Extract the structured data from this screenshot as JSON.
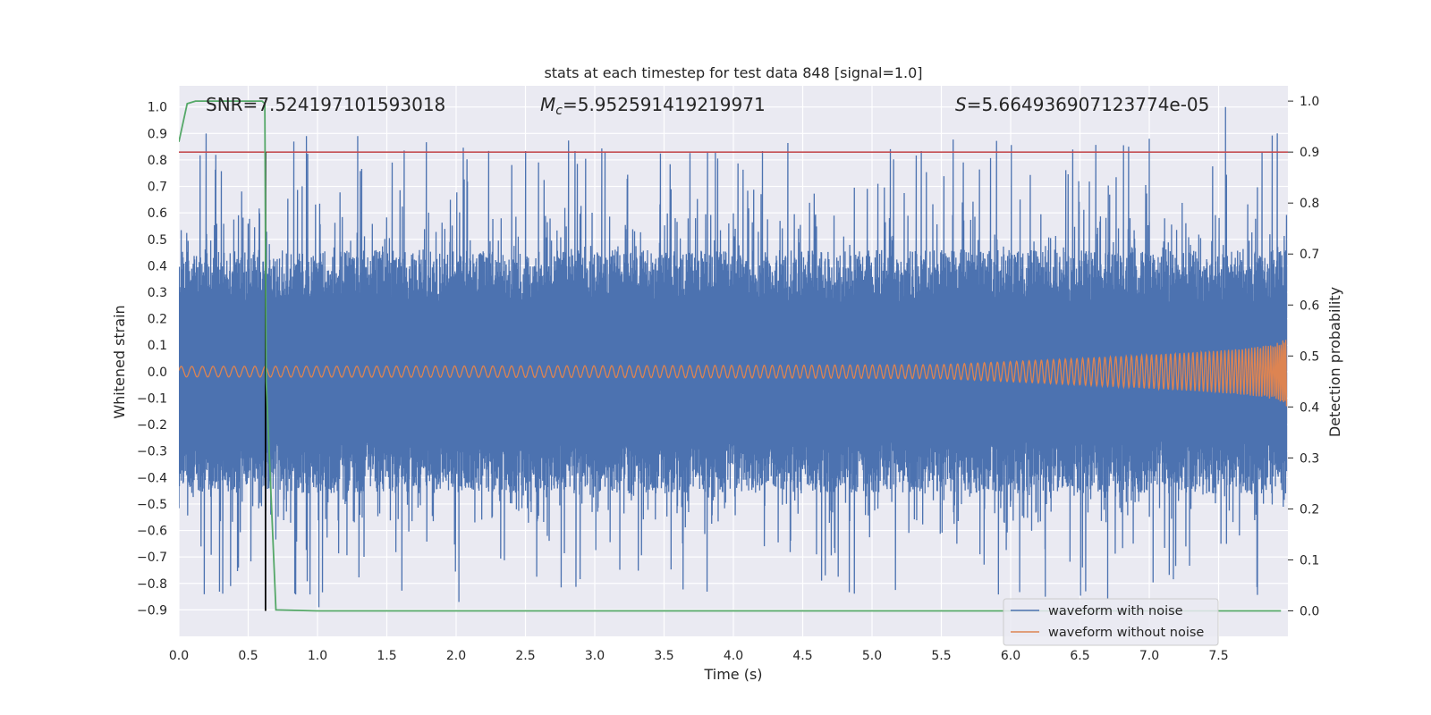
{
  "chart_data": {
    "type": "line",
    "title": "stats at each timestep for test data 848 [signal=1.0]",
    "xlabel": "Time (s)",
    "ylabel": "Whitened strain",
    "y2label": "Detection probability",
    "xlim": [
      0.0,
      8.0
    ],
    "ylim": [
      -1.0,
      1.08
    ],
    "y2lim": [
      -0.05,
      1.03
    ],
    "x_ticks": [
      "0.0",
      "0.5",
      "1.0",
      "1.5",
      "2.0",
      "2.5",
      "3.0",
      "3.5",
      "4.0",
      "4.5",
      "5.0",
      "5.5",
      "6.0",
      "6.5",
      "7.0",
      "7.5"
    ],
    "y_ticks": [
      "1.0",
      "0.9",
      "0.8",
      "0.7",
      "0.6",
      "0.5",
      "0.4",
      "0.3",
      "0.2",
      "0.1",
      "0.0",
      "−0.1",
      "−0.2",
      "−0.3",
      "−0.4",
      "−0.5",
      "−0.6",
      "−0.7",
      "−0.8",
      "−0.9"
    ],
    "y2_ticks": [
      "1.0",
      "0.9",
      "0.8",
      "0.7",
      "0.6",
      "0.5",
      "0.4",
      "0.3",
      "0.2",
      "0.1",
      "0.0"
    ],
    "annotations": {
      "snr": "SNR=7.524197101593018",
      "mc_symbol": "M",
      "mc_sub": "c",
      "mc_value": "=5.952591419219971",
      "s_symbol": "S",
      "s_value": "=5.664936907123774e-05"
    },
    "legend": {
      "placement": "lower-right",
      "entries": [
        "waveform with noise",
        "waveform without noise"
      ]
    },
    "threshold_line": {
      "axis": "detection probability",
      "value": 0.9,
      "color": "#c44e52"
    },
    "marker_line": {
      "x": 0.625,
      "from_probability": 0.0,
      "to_probability": 0.9,
      "color": "#000000"
    },
    "series": [
      {
        "name": "waveform with noise",
        "color": "#4c72b0",
        "envelope": {
          "typical": 0.35,
          "peak": 1.0,
          "trough": -0.89
        }
      },
      {
        "name": "waveform without noise",
        "color": "#dd8452",
        "envelope": {
          "amp_start": 0.02,
          "amp_end": 0.38,
          "t_end": 7.99
        }
      },
      {
        "name": "detection probability",
        "color": "#55a868",
        "x": [
          0.0,
          0.06,
          0.12,
          0.2,
          0.4,
          0.6,
          0.62,
          0.63,
          0.7,
          1.0,
          3.0,
          5.0,
          7.0,
          7.95
        ],
        "values": [
          0.92,
          0.995,
          1.0,
          1.0,
          1.0,
          1.0,
          0.995,
          0.45,
          0.002,
          0.0,
          0.0,
          0.0,
          0.0,
          0.0
        ]
      }
    ]
  },
  "colors": {
    "plot_background": "#eaeaf2",
    "grid": "#ffffff",
    "legend_background": "#eaeaf2"
  }
}
